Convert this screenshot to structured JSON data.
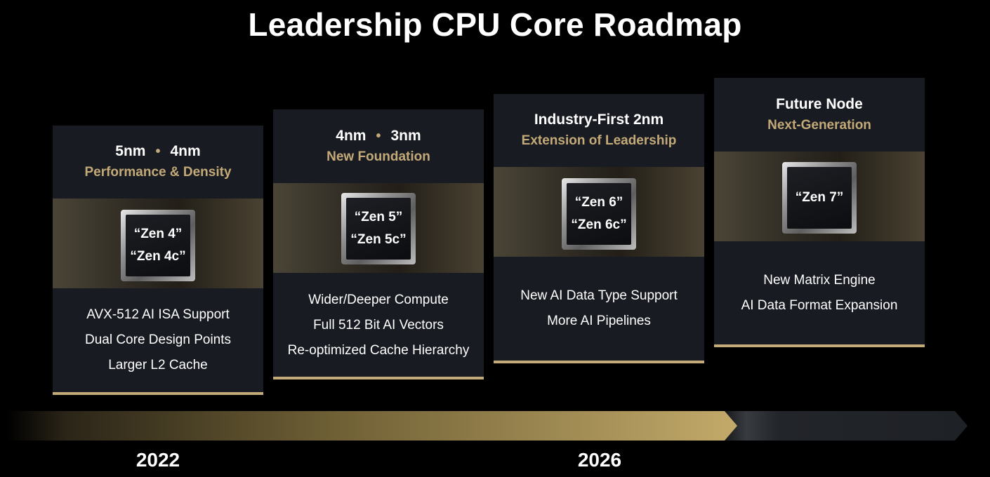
{
  "title": "Leadership CPU Core Roadmap",
  "stages": [
    {
      "node_a": "5nm",
      "node_b": "4nm",
      "tagline": "Performance & Density",
      "cores": [
        "“Zen 4”",
        "“Zen 4c”"
      ],
      "features": [
        "AVX-512 AI ISA Support",
        "Dual Core Design Points",
        "Larger L2 Cache"
      ]
    },
    {
      "node_a": "4nm",
      "node_b": "3nm",
      "tagline": "New Foundation",
      "cores": [
        "“Zen 5”",
        "“Zen 5c”"
      ],
      "features": [
        "Wider/Deeper Compute",
        "Full 512 Bit AI Vectors",
        "Re-optimized Cache Hierarchy"
      ]
    },
    {
      "node_a": "Industry-First 2nm",
      "tagline": "Extension of Leadership",
      "cores": [
        "“Zen 6”",
        "“Zen 6c”"
      ],
      "features": [
        "New AI Data Type Support",
        "More AI Pipelines"
      ]
    },
    {
      "node_a": "Future Node",
      "tagline": "Next-Generation",
      "cores": [
        "“Zen 7”"
      ],
      "features": [
        "New Matrix Engine",
        "AI Data Format Expansion"
      ]
    }
  ],
  "timeline": {
    "years": [
      "2022",
      "2026"
    ]
  },
  "colors": {
    "background": "#000000",
    "card": "#181b21",
    "accent_gold": "#c3aa78",
    "text": "#ffffff"
  }
}
